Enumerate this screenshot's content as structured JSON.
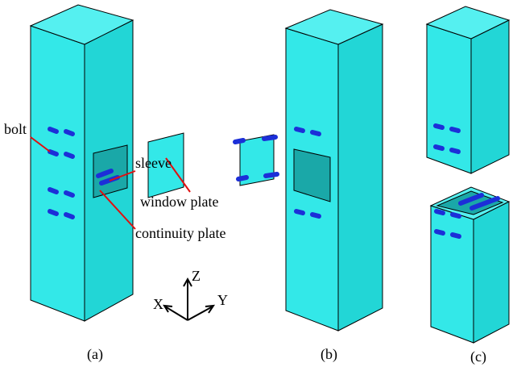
{
  "labels": {
    "bolt": "bolt",
    "sleeve": "sleeve",
    "window_plate": "window plate",
    "continuity_plate": "continuity plate"
  },
  "axes": {
    "z": "Z",
    "x": "X",
    "y": "Y"
  },
  "captions": [
    "(a)",
    "(b)",
    "(c)"
  ]
}
